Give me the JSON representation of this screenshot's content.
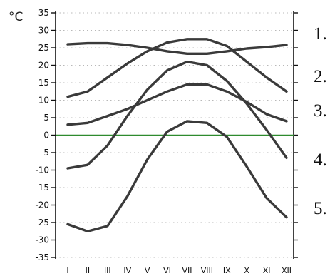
{
  "chart_data": {
    "type": "line",
    "unit_label": "°C",
    "categories": [
      "I",
      "II",
      "III",
      "IV",
      "V",
      "VI",
      "VII",
      "VIII",
      "IX",
      "X",
      "XI",
      "XII"
    ],
    "y_ticks": [
      "35",
      "30",
      "25",
      "20",
      "15",
      "10",
      "5",
      "0",
      "-5",
      "-10",
      "-15",
      "-20",
      "-25",
      "-30",
      "-35"
    ],
    "ylim": [
      -35,
      35
    ],
    "grid": true,
    "zero_line_color": "#2e8b2e",
    "line_color": "#3a3a3a",
    "series": [
      {
        "label": "1.",
        "values": [
          26,
          26.3,
          26.3,
          25.8,
          25,
          24,
          23.3,
          23.3,
          24,
          24.8,
          25.2,
          25.8
        ]
      },
      {
        "label": "2.",
        "values": [
          11,
          12.5,
          16.5,
          20.5,
          24,
          26.5,
          27.5,
          27.5,
          25.5,
          21,
          16.5,
          12.5
        ]
      },
      {
        "label": "3.",
        "values": [
          3,
          3.5,
          5.5,
          7.5,
          10,
          12.5,
          14.5,
          14.5,
          12.5,
          9.5,
          6,
          4
        ]
      },
      {
        "label": "4.",
        "values": [
          -9.5,
          -8.5,
          -3,
          5.5,
          13,
          18.5,
          21,
          20,
          15.5,
          9,
          1.5,
          -6.5
        ]
      },
      {
        "label": "5.",
        "values": [
          -25.5,
          -27.5,
          -26,
          -17.5,
          -7,
          1,
          4,
          3.5,
          -0.5,
          -9,
          -18,
          -23.5
        ]
      }
    ]
  }
}
